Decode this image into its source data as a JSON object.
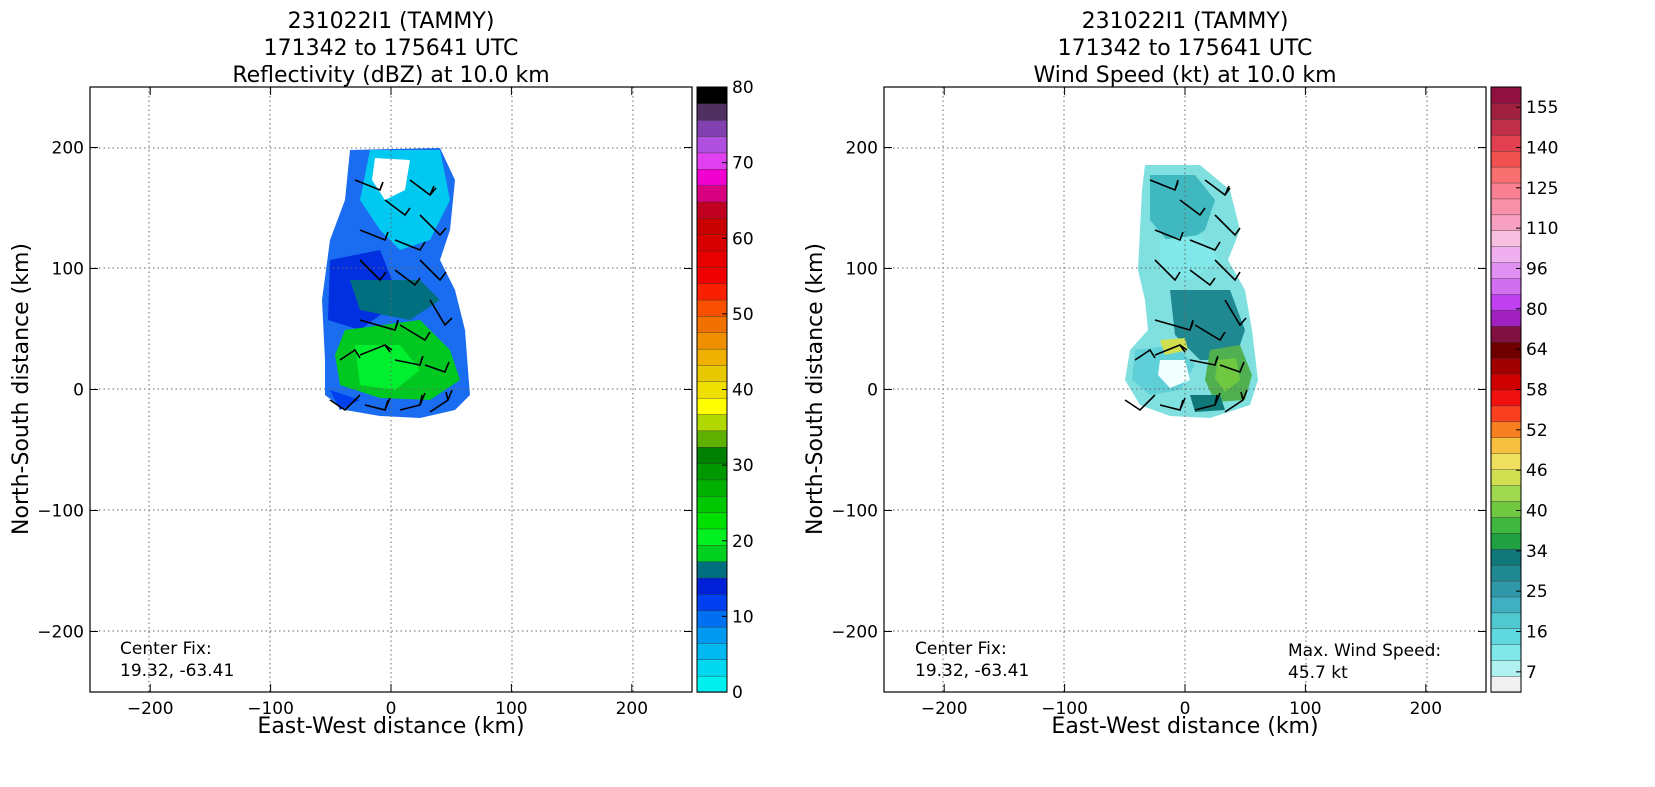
{
  "chart_data": [
    {
      "type": "heatmap",
      "title_lines": [
        "231022I1 (TAMMY)",
        "171342 to 175641 UTC",
        "Reflectivity (dBZ) at 10.0 km"
      ],
      "xlabel": "East-West distance (km)",
      "ylabel": "North-South distance (km)",
      "xlim": [
        -250,
        250
      ],
      "ylim": [
        -250,
        250
      ],
      "xticks": [
        -200,
        -100,
        0,
        100,
        200
      ],
      "yticks": [
        -200,
        -100,
        0,
        100,
        200
      ],
      "grid": true,
      "annotation_lines": [
        "Center Fix:",
        "19.32, -63.41"
      ],
      "colorbar": {
        "label_ticks": [
          0,
          10,
          20,
          30,
          40,
          50,
          60,
          70,
          80
        ],
        "colors": [
          "#00f0f0",
          "#00d8f0",
          "#00b8f0",
          "#0098f0",
          "#0070f0",
          "#0040f0",
          "#0020d8",
          "#007080",
          "#00d020",
          "#00f020",
          "#00e000",
          "#00c800",
          "#00b000",
          "#009800",
          "#008000",
          "#60b000",
          "#b0d800",
          "#ffff00",
          "#f0e000",
          "#e8c800",
          "#f0b000",
          "#f09000",
          "#f07000",
          "#f85000",
          "#f82000",
          "#f00000",
          "#e80000",
          "#d80000",
          "#c80000",
          "#c00020",
          "#d80080",
          "#f000d0",
          "#e040f0",
          "#b050e0",
          "#8040b0",
          "#503060",
          "#000000"
        ]
      },
      "field_name": "reflectivity"
    },
    {
      "type": "heatmap",
      "title_lines": [
        "231022I1 (TAMMY)",
        "171342 to 175641 UTC",
        "Wind Speed (kt) at 10.0 km"
      ],
      "xlabel": "East-West distance (km)",
      "ylabel": "North-South distance (km)",
      "xlim": [
        -250,
        250
      ],
      "ylim": [
        -250,
        250
      ],
      "xticks": [
        -200,
        -100,
        0,
        100,
        200
      ],
      "yticks": [
        -200,
        -100,
        0,
        100,
        200
      ],
      "grid": true,
      "annotation_lines": [
        "Center Fix:",
        "19.32, -63.41"
      ],
      "max_wind_lines": [
        "Max. Wind Speed:",
        "45.7 kt"
      ],
      "colorbar": {
        "label_ticks": [
          7,
          16,
          25,
          34,
          40,
          46,
          52,
          58,
          64,
          80,
          96,
          110,
          125,
          140,
          155
        ],
        "colors": [
          "#f0f0f0",
          "#b0f0f0",
          "#80e8e8",
          "#60d8e0",
          "#50c8d0",
          "#40b0c0",
          "#3098a8",
          "#208890",
          "#107878",
          "#20a040",
          "#40b840",
          "#70c840",
          "#a0d850",
          "#d0e050",
          "#f0e060",
          "#f8c040",
          "#f88020",
          "#f84020",
          "#f01010",
          "#d00000",
          "#a00000",
          "#700000",
          "#801040",
          "#a020c0",
          "#c040f0",
          "#d070f0",
          "#e090f0",
          "#f0b0f0",
          "#f8c0e0",
          "#f8a0c0",
          "#f890a8",
          "#f88090",
          "#f87070",
          "#f05050",
          "#e04050",
          "#c03048",
          "#a02040",
          "#901040"
        ]
      },
      "field_name": "wind"
    }
  ]
}
